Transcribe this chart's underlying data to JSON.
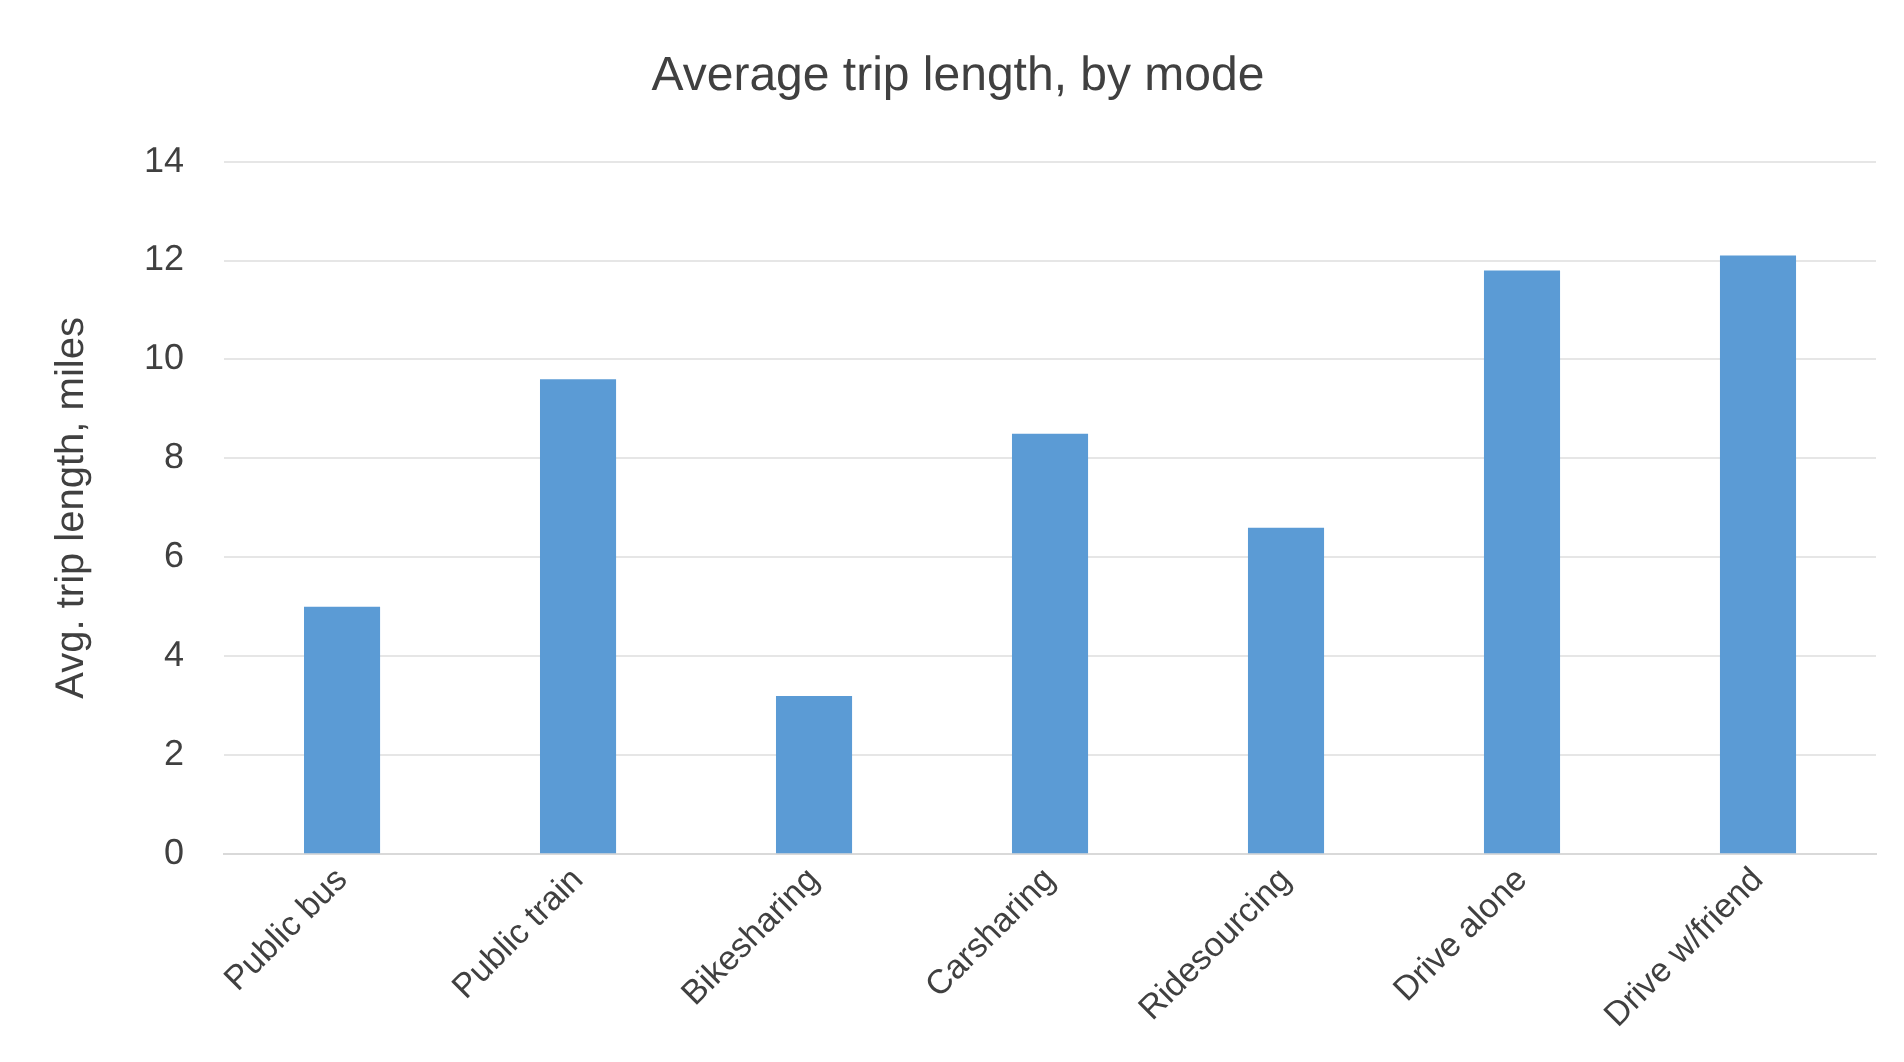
{
  "chart_data": {
    "type": "bar",
    "title": "Average trip length, by mode",
    "ylabel": "Avg. trip length, miles",
    "categories": [
      "Public bus",
      "Public train",
      "Bikesharing",
      "Carsharing",
      "Ridesourcing",
      "Drive alone",
      "Drive w/friend"
    ],
    "values": [
      5.0,
      9.6,
      3.2,
      8.5,
      6.6,
      11.8,
      12.1
    ],
    "color": "#5b9bd5",
    "ylim": [
      0,
      14
    ],
    "yticks": [
      0,
      2,
      4,
      6,
      8,
      10,
      12,
      14
    ],
    "grid": "y",
    "legend": false
  }
}
